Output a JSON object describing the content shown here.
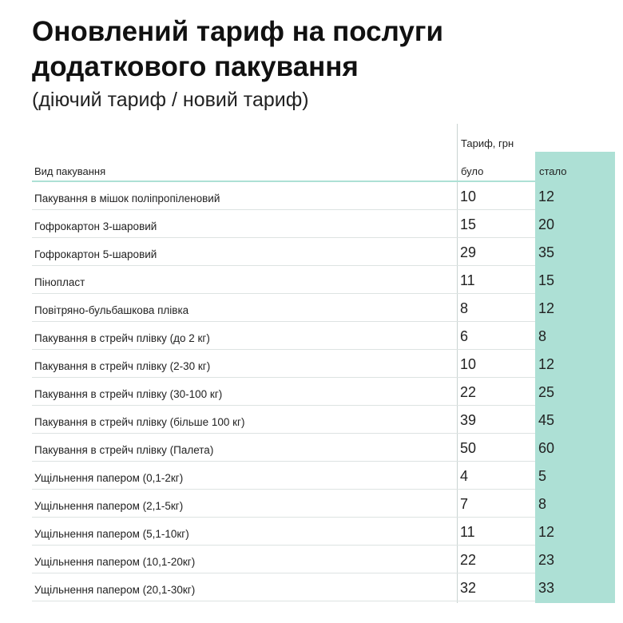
{
  "title": "Оновлений тариф на послуги додаткового пакування",
  "subtitle": "(діючий тариф / новий тариф)",
  "table": {
    "header_group": "Тариф, грн",
    "col_type": "Вид пакування",
    "col_was": "було",
    "col_now": "стало",
    "rows": [
      {
        "name": "Пакування в мішок поліпропіленовий",
        "was": "10",
        "now": "12"
      },
      {
        "name": "Гофрокартон 3-шаровий",
        "was": "15",
        "now": "20"
      },
      {
        "name": "Гофрокартон 5-шаровий",
        "was": "29",
        "now": "35"
      },
      {
        "name": "Пінопласт",
        "was": "11",
        "now": "15"
      },
      {
        "name": "Повітряно-бульбашкова плівка",
        "was": "8",
        "now": "12"
      },
      {
        "name": "Пакування в стрейч плівку (до 2 кг)",
        "was": "6",
        "now": "8"
      },
      {
        "name": "Пакування в стрейч плівку (2-30 кг)",
        "was": "10",
        "now": "12"
      },
      {
        "name": "Пакування в стрейч плівку (30-100 кг)",
        "was": "22",
        "now": "25"
      },
      {
        "name": "Пакування в стрейч плівку (більше 100 кг)",
        "was": "39",
        "now": "45"
      },
      {
        "name": "Пакування в стрейч плівку (Палета)",
        "was": "50",
        "now": "60"
      },
      {
        "name": "Ущільнення папером (0,1-2кг)",
        "was": "4",
        "now": "5"
      },
      {
        "name": "Ущільнення папером (2,1-5кг)",
        "was": "7",
        "now": "8"
      },
      {
        "name": "Ущільнення папером (5,1-10кг)",
        "was": "11",
        "now": "12"
      },
      {
        "name": "Ущільнення папером (10,1-20кг)",
        "was": "22",
        "now": "23"
      },
      {
        "name": "Ущільнення папером (20,1-30кг)",
        "was": "32",
        "now": "33"
      }
    ]
  },
  "colors": {
    "accent": "#ade0d5",
    "text": "#1a1a1a"
  }
}
